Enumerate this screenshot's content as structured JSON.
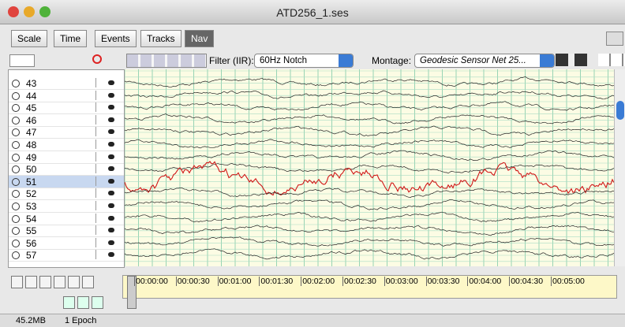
{
  "window": {
    "title": "ATD256_1.ses"
  },
  "toolbar": {
    "buttons": [
      "Scale",
      "Time",
      "Events",
      "Tracks",
      "Nav"
    ],
    "active": "Nav"
  },
  "filter": {
    "label": "Filter (IIR):",
    "value": "60Hz Notch"
  },
  "montage": {
    "label": "Montage:",
    "value": "Geodesic Sensor Net 25..."
  },
  "channels": [
    "43",
    "44",
    "45",
    "46",
    "47",
    "48",
    "49",
    "50",
    "51",
    "52",
    "53",
    "54",
    "55",
    "56",
    "57"
  ],
  "selected_channel": "51",
  "timeline": [
    "00:00:00",
    "00:00:30",
    "00:01:00",
    "00:01:30",
    "00:02:00",
    "00:02:30",
    "00:03:00",
    "00:03:30",
    "00:04:00",
    "00:04:30",
    "00:05:00"
  ],
  "status": {
    "memory": "45.2MB",
    "epochs": "1 Epoch"
  }
}
